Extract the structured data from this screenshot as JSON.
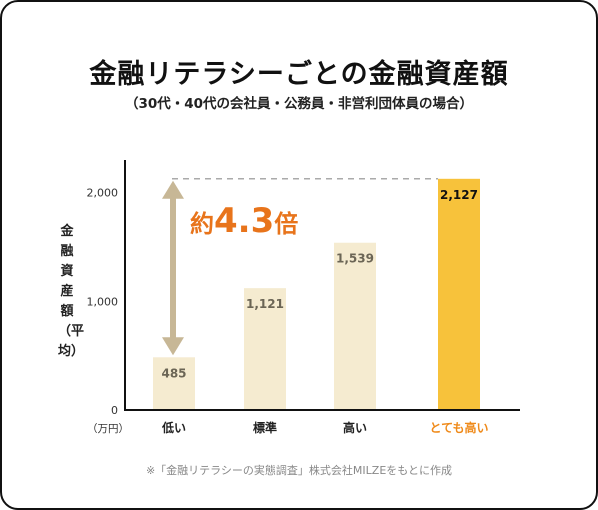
{
  "chart_data": {
    "type": "bar",
    "title": "金融リテラシーごとの金融資産額",
    "subtitle": "（30代・40代の会社員・公務員・非営利団体員の場合）",
    "ylabel": "金融資産額（平均）",
    "yunit": "（万円）",
    "categories": [
      "低い",
      "標準",
      "高い",
      "とても高い"
    ],
    "values": [
      485,
      1121,
      1539,
      2127
    ],
    "value_labels": [
      "485",
      "1,121",
      "1,539",
      "2,127"
    ],
    "yticks": [
      0,
      1000,
      2000
    ],
    "ytick_labels": [
      "0",
      "1,000",
      "2,000"
    ],
    "ylim": [
      0,
      2300
    ],
    "annotation": {
      "prefix": "約",
      "number": "4.3",
      "suffix": "倍"
    },
    "source": "※「金融リテラシーの実態調査」株式会社MILZEをもとに作成"
  },
  "colors": {
    "bar": "#f5ebd0",
    "bar_highlight": "#f7c23b",
    "highlight_text": "#ef8a1a",
    "arrow": "#c7b796",
    "annotation": "#e8741b",
    "axis": "#111111",
    "dash": "#aaaaaa"
  }
}
